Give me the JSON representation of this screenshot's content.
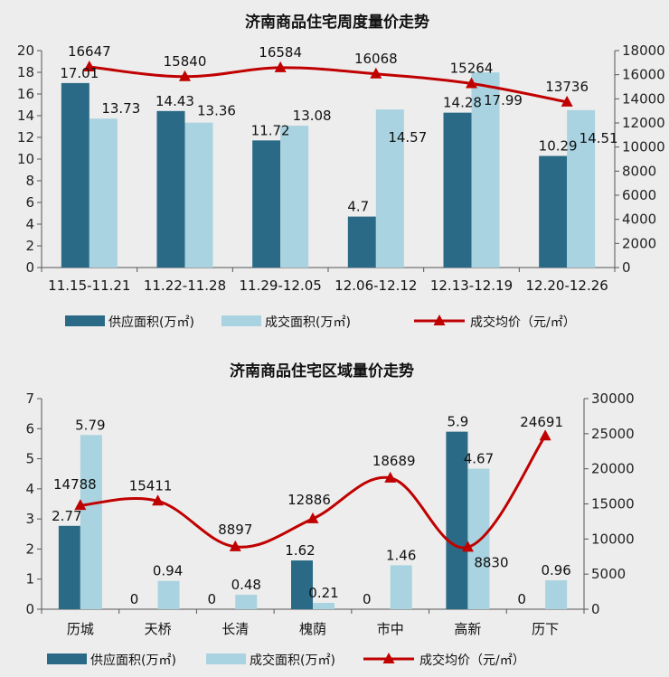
{
  "colors": {
    "supply": "#2a6a86",
    "deal": "#a9d3e0",
    "price": "#c00000",
    "axis": "#555555",
    "background": "#ededed"
  },
  "chart_data": [
    {
      "type": "bar",
      "title": "济南商品住宅周度量价走势",
      "categories": [
        "11.15-11.21",
        "11.22-11.28",
        "11.29-12.05",
        "12.06-12.12",
        "12.13-12.19",
        "12.20-12.26"
      ],
      "series": [
        {
          "name": "供应面积(万㎡)",
          "type": "bar",
          "axis": "left",
          "values": [
            17.01,
            14.43,
            11.72,
            4.7,
            14.28,
            10.29
          ]
        },
        {
          "name": "成交面积(万㎡)",
          "type": "bar",
          "axis": "left",
          "values": [
            13.73,
            13.36,
            13.08,
            14.57,
            17.99,
            14.51
          ]
        },
        {
          "name": "成交均价（元/㎡）",
          "type": "line",
          "axis": "right",
          "values": [
            16647,
            15840,
            16584,
            16068,
            15264,
            13736
          ]
        }
      ],
      "ylim_left": [
        0,
        20
      ],
      "yticks_left": [
        0,
        2,
        4,
        6,
        8,
        10,
        12,
        14,
        16,
        18,
        20
      ],
      "ylim_right": [
        0,
        18000
      ],
      "yticks_right": [
        0,
        2000,
        4000,
        6000,
        8000,
        10000,
        12000,
        14000,
        16000,
        18000
      ],
      "legend_position": "bottom"
    },
    {
      "type": "bar",
      "title": "济南商品住宅区域量价走势",
      "categories": [
        "历城",
        "天桥",
        "长清",
        "槐荫",
        "市中",
        "高新",
        "历下"
      ],
      "series": [
        {
          "name": "供应面积(万㎡)",
          "type": "bar",
          "axis": "left",
          "values": [
            2.77,
            0,
            0,
            1.62,
            0,
            5.9,
            0
          ]
        },
        {
          "name": "成交面积(万㎡)",
          "type": "bar",
          "axis": "left",
          "values": [
            5.79,
            0.94,
            0.48,
            0.21,
            1.46,
            4.67,
            0.96
          ]
        },
        {
          "name": "成交均价（元/㎡）",
          "type": "line",
          "axis": "right",
          "values": [
            14788,
            15411,
            8897,
            12886,
            18689,
            8830,
            24691
          ]
        }
      ],
      "ylim_left": [
        0,
        7
      ],
      "yticks_left": [
        0,
        1,
        2,
        3,
        4,
        5,
        6,
        7
      ],
      "ylim_right": [
        0,
        30000
      ],
      "yticks_right": [
        0,
        5000,
        10000,
        15000,
        20000,
        25000,
        30000
      ],
      "legend_position": "bottom"
    }
  ]
}
